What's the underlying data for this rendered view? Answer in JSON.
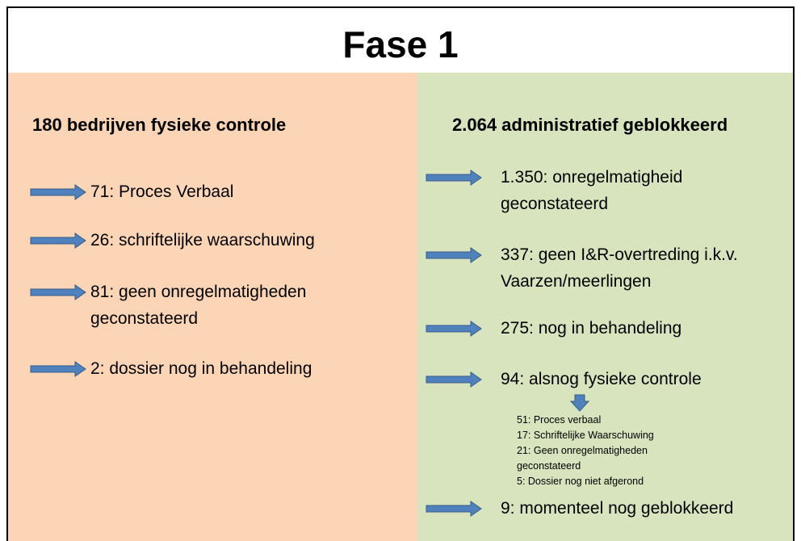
{
  "title": "Fase 1",
  "left": {
    "heading": "180 bedrijven fysieke controle",
    "items": [
      {
        "lines": [
          "71: Proces Verbaal"
        ]
      },
      {
        "lines": [
          "26: schriftelijke waarschuwing"
        ]
      },
      {
        "lines": [
          "81: geen onregelmatigheden",
          "geconstateerd"
        ]
      },
      {
        "lines": [
          "2: dossier nog in behandeling"
        ]
      }
    ]
  },
  "right": {
    "heading": "2.064 administratief geblokkeerd",
    "items": [
      {
        "lines": [
          "1.350: onregelmatigheid",
          "geconstateerd"
        ]
      },
      {
        "lines": [
          "337: geen I&R-overtreding i.k.v.",
          "Vaarzen/meerlingen"
        ]
      },
      {
        "lines": [
          "275: nog in behandeling"
        ]
      },
      {
        "lines": [
          "94: alsnog fysieke controle"
        ]
      },
      {
        "lines": [
          "9: momenteel nog geblokkeerd"
        ]
      }
    ],
    "sublist": [
      "51: Proces verbaal",
      "17: Schriftelijke Waarschuwing",
      "21: Geen onregelmatigheden",
      "geconstateerd",
      "5: Dossier nog niet afgerond"
    ]
  }
}
